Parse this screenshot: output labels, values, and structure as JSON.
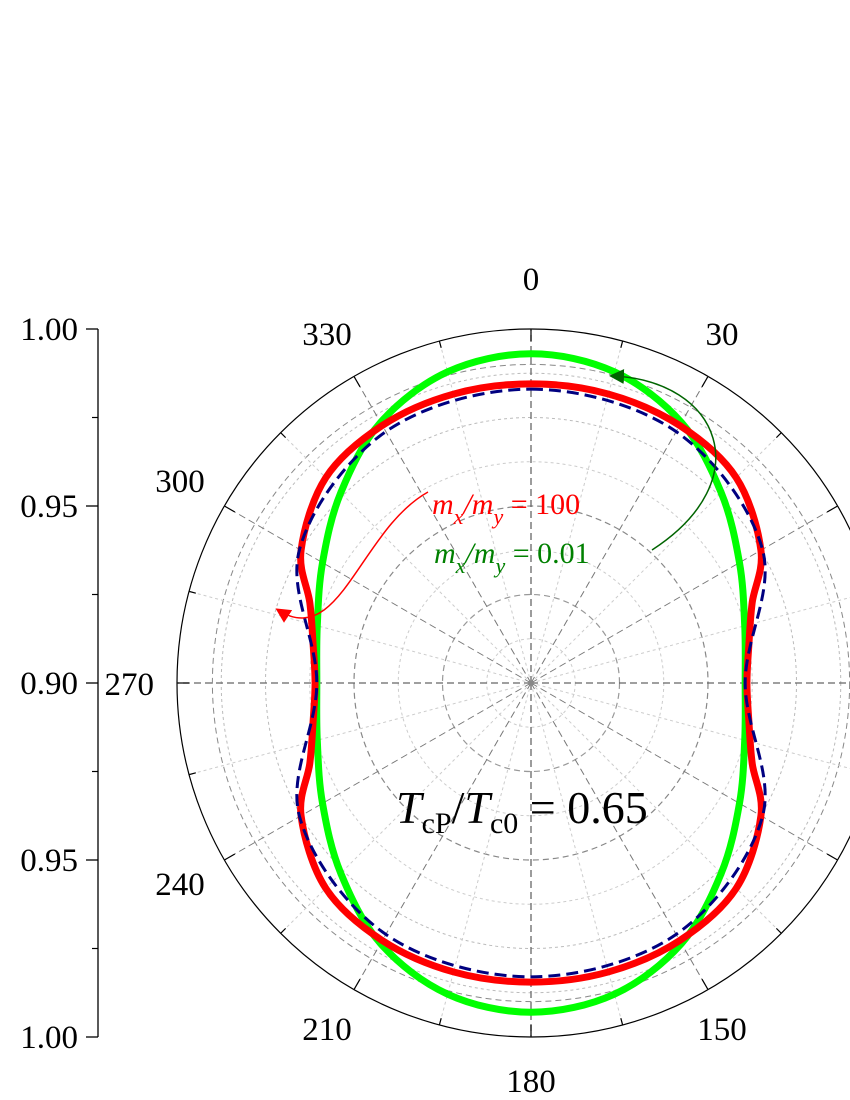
{
  "chart_data": {
    "type": "polar-line",
    "radial_axis": {
      "tick_labels": [
        "1.00",
        "0.95",
        "0.90",
        "0.95",
        "1.00"
      ],
      "range": [
        0.9,
        1.0
      ]
    },
    "angular_axis": {
      "unit": "degrees",
      "tick_labels": [
        "0",
        "30",
        "150",
        "180",
        "210",
        "240",
        "270",
        "300",
        "330"
      ]
    },
    "annotation_main": {
      "T1": "T",
      "s1": "cP",
      "slash": "/",
      "T2": "T",
      "s2": "c0",
      "rest": " = 0.65"
    },
    "series": [
      {
        "key": "green",
        "color": "#00ff00",
        "style": "solid",
        "label_prefix": "m",
        "label_sub1": "x",
        "label_mid": "/m",
        "label_sub2": "y",
        "label_value": " = 0.01",
        "label_color": "#008000",
        "points": [
          {
            "theta": 0,
            "r": 0.993
          },
          {
            "theta": 15,
            "r": 0.991
          },
          {
            "theta": 30,
            "r": 0.985
          },
          {
            "theta": 45,
            "r": 0.976
          },
          {
            "theta": 60,
            "r": 0.968
          },
          {
            "theta": 75,
            "r": 0.9625
          },
          {
            "theta": 90,
            "r": 0.9605
          },
          {
            "theta": 105,
            "r": 0.9625
          },
          {
            "theta": 120,
            "r": 0.968
          },
          {
            "theta": 135,
            "r": 0.976
          },
          {
            "theta": 150,
            "r": 0.985
          },
          {
            "theta": 165,
            "r": 0.991
          },
          {
            "theta": 180,
            "r": 0.993
          },
          {
            "theta": 195,
            "r": 0.991
          },
          {
            "theta": 210,
            "r": 0.985
          },
          {
            "theta": 225,
            "r": 0.976
          },
          {
            "theta": 240,
            "r": 0.968
          },
          {
            "theta": 255,
            "r": 0.9625
          },
          {
            "theta": 270,
            "r": 0.9605
          },
          {
            "theta": 285,
            "r": 0.9625
          },
          {
            "theta": 300,
            "r": 0.968
          },
          {
            "theta": 315,
            "r": 0.976
          },
          {
            "theta": 330,
            "r": 0.985
          },
          {
            "theta": 345,
            "r": 0.991
          },
          {
            "theta": 360,
            "r": 0.993
          }
        ]
      },
      {
        "key": "red",
        "color": "#ff0000",
        "style": "solid",
        "label_prefix": "m",
        "label_sub1": "x",
        "label_mid": "/m",
        "label_sub2": "y",
        "label_value": " = 100",
        "label_color": "#ff0000",
        "points": [
          {
            "theta": 0,
            "r": 0.9845
          },
          {
            "theta": 15,
            "r": 0.9845
          },
          {
            "theta": 30,
            "r": 0.984
          },
          {
            "theta": 45,
            "r": 0.982
          },
          {
            "theta": 60,
            "r": 0.975
          },
          {
            "theta": 70,
            "r": 0.9665
          },
          {
            "theta": 80,
            "r": 0.9625
          },
          {
            "theta": 90,
            "r": 0.961
          },
          {
            "theta": 100,
            "r": 0.9625
          },
          {
            "theta": 110,
            "r": 0.9665
          },
          {
            "theta": 120,
            "r": 0.975
          },
          {
            "theta": 135,
            "r": 0.982
          },
          {
            "theta": 150,
            "r": 0.984
          },
          {
            "theta": 165,
            "r": 0.9845
          },
          {
            "theta": 180,
            "r": 0.9845
          },
          {
            "theta": 195,
            "r": 0.9845
          },
          {
            "theta": 210,
            "r": 0.984
          },
          {
            "theta": 225,
            "r": 0.982
          },
          {
            "theta": 240,
            "r": 0.975
          },
          {
            "theta": 250,
            "r": 0.9665
          },
          {
            "theta": 260,
            "r": 0.9625
          },
          {
            "theta": 270,
            "r": 0.961
          },
          {
            "theta": 280,
            "r": 0.9625
          },
          {
            "theta": 290,
            "r": 0.9665
          },
          {
            "theta": 300,
            "r": 0.975
          },
          {
            "theta": 315,
            "r": 0.982
          },
          {
            "theta": 330,
            "r": 0.984
          },
          {
            "theta": 345,
            "r": 0.9845
          },
          {
            "theta": 360,
            "r": 0.9845
          }
        ]
      },
      {
        "key": "navy",
        "color": "#000080",
        "style": "dashed",
        "points": [
          {
            "theta": 0,
            "r": 0.983
          },
          {
            "theta": 30,
            "r": 0.982
          },
          {
            "theta": 60,
            "r": 0.9755
          },
          {
            "theta": 90,
            "r": 0.9605
          },
          {
            "theta": 120,
            "r": 0.9755
          },
          {
            "theta": 150,
            "r": 0.982
          },
          {
            "theta": 180,
            "r": 0.983
          },
          {
            "theta": 210,
            "r": 0.982
          },
          {
            "theta": 240,
            "r": 0.9755
          },
          {
            "theta": 270,
            "r": 0.9605
          },
          {
            "theta": 300,
            "r": 0.9755
          },
          {
            "theta": 330,
            "r": 0.982
          },
          {
            "theta": 360,
            "r": 0.983
          }
        ]
      }
    ]
  }
}
